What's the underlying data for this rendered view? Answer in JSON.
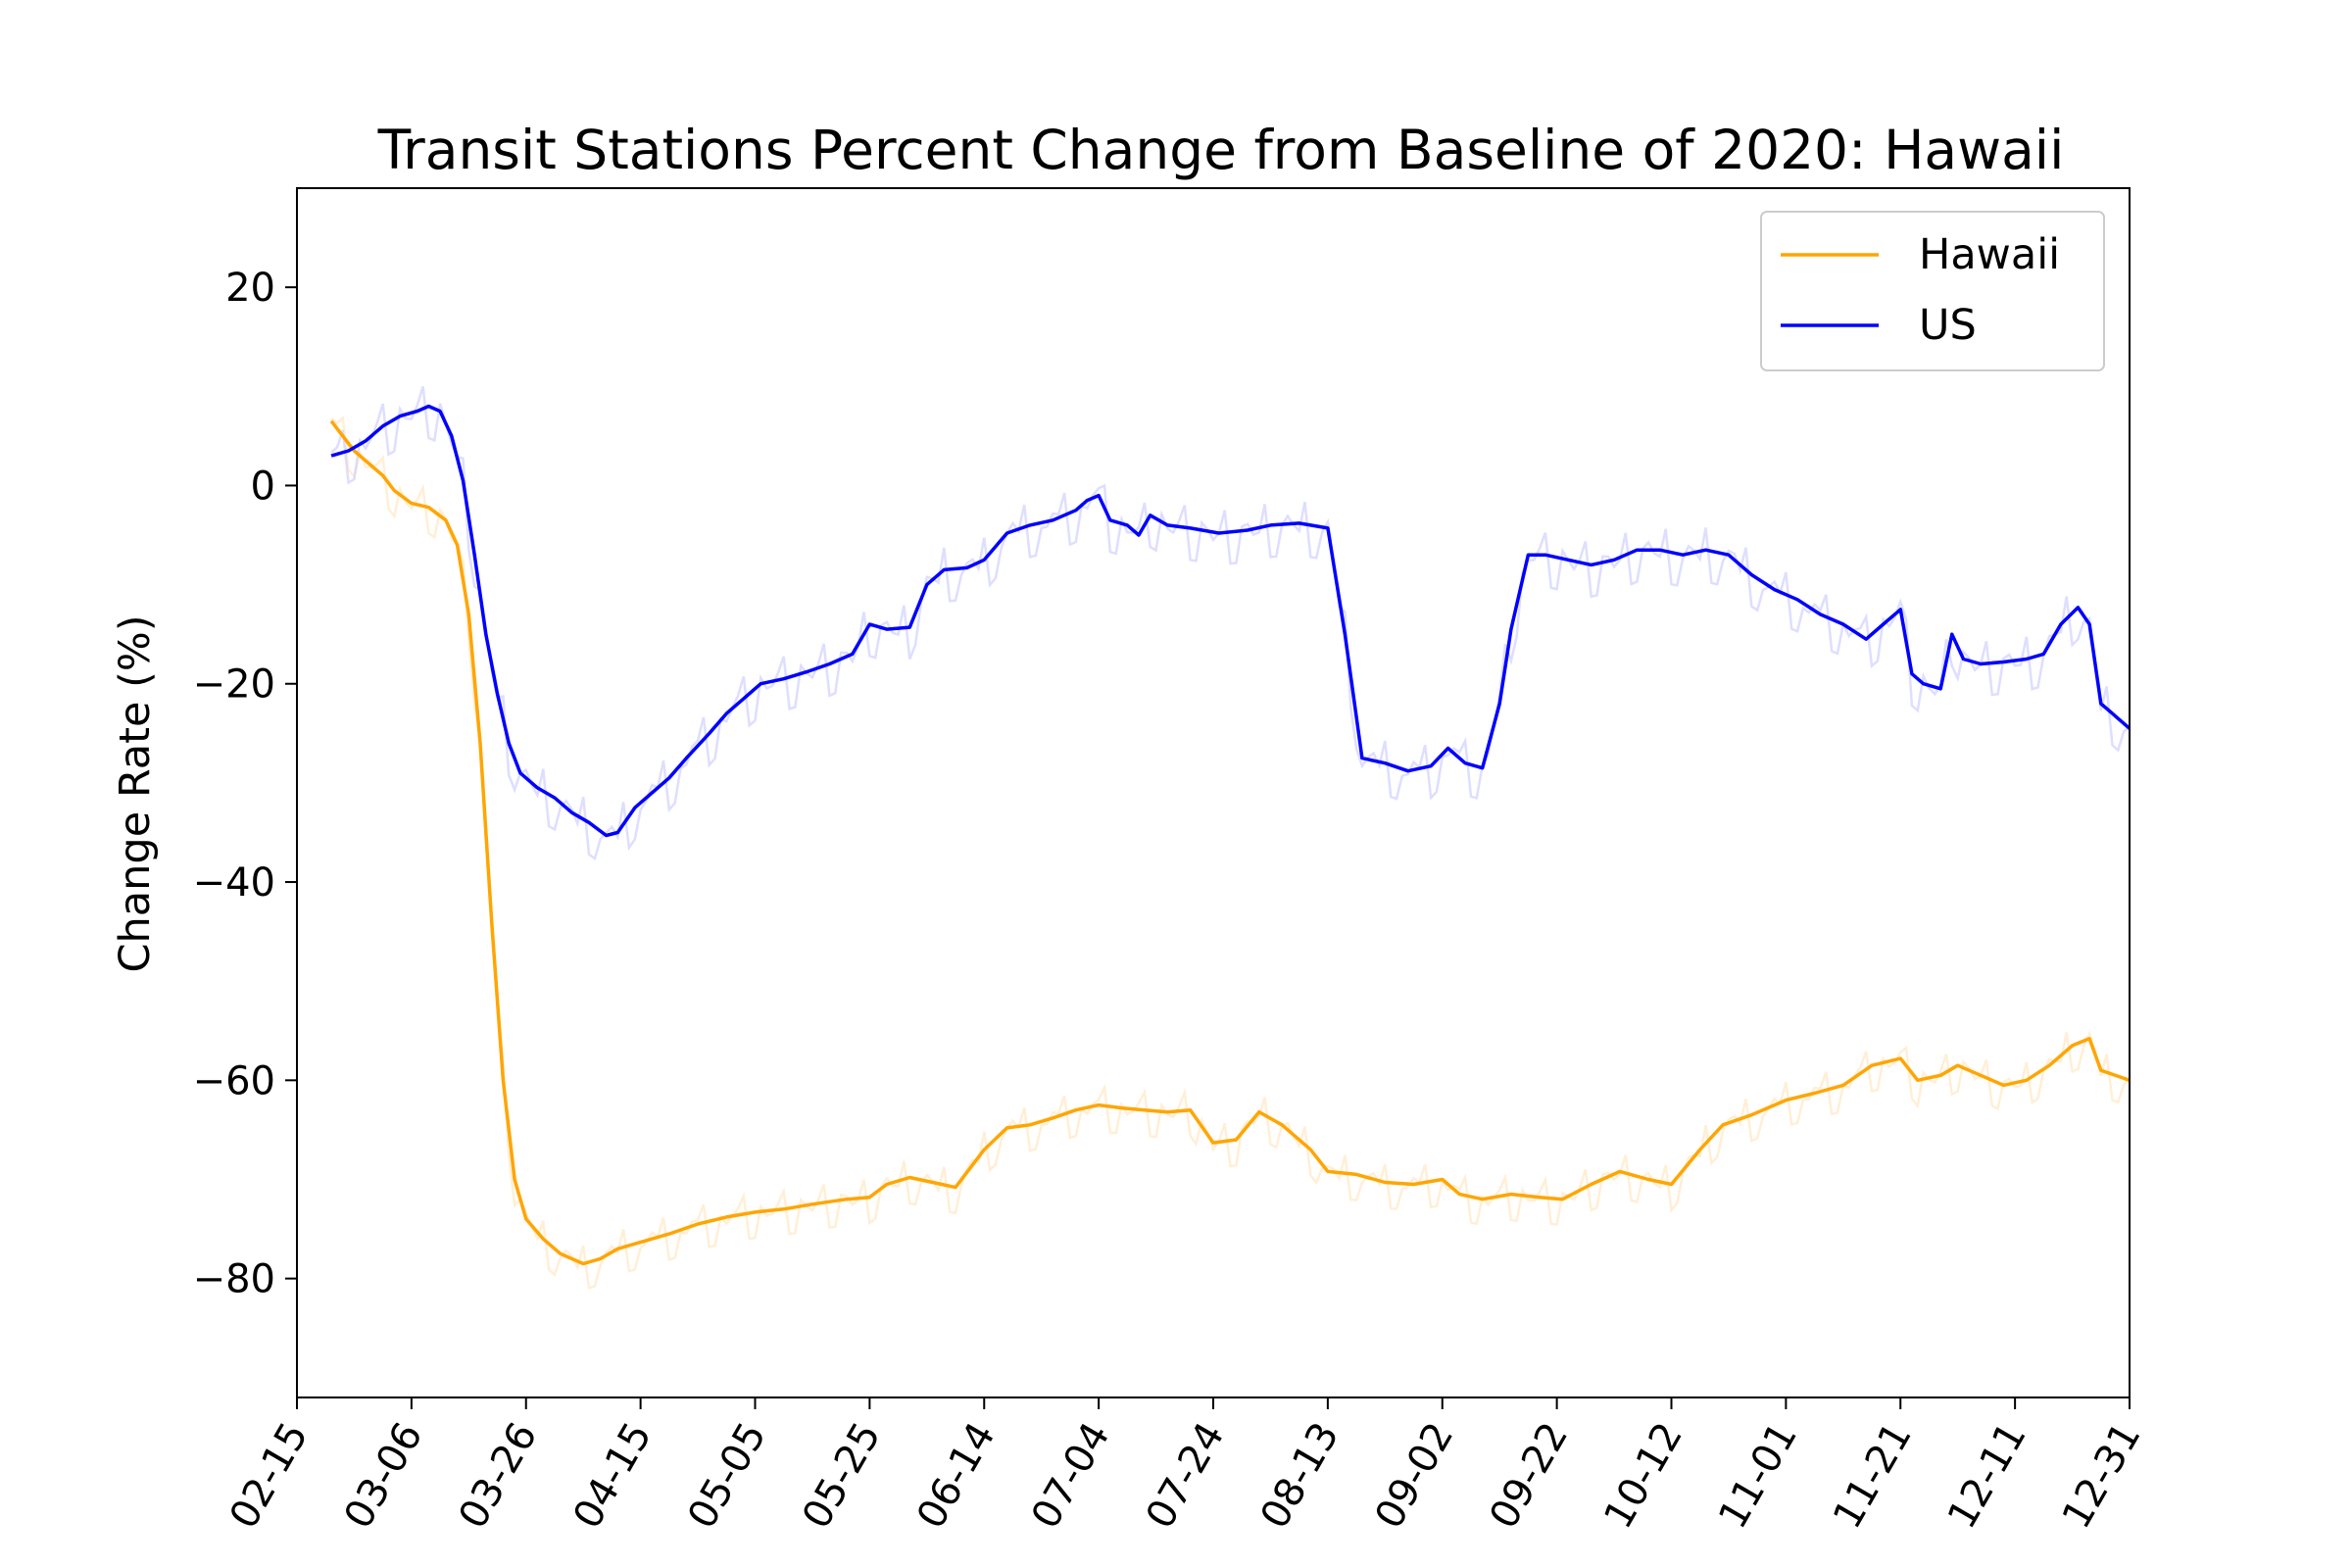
{
  "chart_data": {
    "type": "line",
    "title": "Transit Stations Percent Change from Baseline of 2020: Hawaii",
    "xlabel": "",
    "ylabel": "Change Rate (%)",
    "ylim": [
      -92,
      30
    ],
    "yticks": [
      20,
      0,
      -20,
      -40,
      -60,
      -80
    ],
    "ytick_labels": [
      "20",
      "0",
      "−20",
      "−40",
      "−60",
      "−80"
    ],
    "xlim": [
      "02-15",
      "12-31"
    ],
    "xticks": [
      "02-15",
      "03-06",
      "03-26",
      "04-15",
      "05-05",
      "05-25",
      "06-14",
      "07-04",
      "07-24",
      "08-13",
      "09-02",
      "09-22",
      "10-12",
      "11-01",
      "11-21",
      "12-11",
      "12-31"
    ],
    "grid": false,
    "legend": {
      "position": "top-right",
      "entries": [
        "Hawaii",
        "US"
      ]
    },
    "series": [
      {
        "name": "Hawaii",
        "color": "#FFA500",
        "style": "7-day average",
        "points": [
          [
            "02-21",
            6.5
          ],
          [
            "02-23",
            5.0
          ],
          [
            "02-25",
            3.5
          ],
          [
            "02-28",
            2.0
          ],
          [
            "03-01",
            1.0
          ],
          [
            "03-03",
            -0.5
          ],
          [
            "03-06",
            -1.8
          ],
          [
            "03-09",
            -2.2
          ],
          [
            "03-12",
            -3.5
          ],
          [
            "03-14",
            -6
          ],
          [
            "03-16",
            -13
          ],
          [
            "03-18",
            -26
          ],
          [
            "03-20",
            -44
          ],
          [
            "03-22",
            -60
          ],
          [
            "03-24",
            -70
          ],
          [
            "03-26",
            -74
          ],
          [
            "03-29",
            -76
          ],
          [
            "04-01",
            -77.5
          ],
          [
            "04-05",
            -78.5
          ],
          [
            "04-08",
            -78.0
          ],
          [
            "04-11",
            -77.0
          ],
          [
            "04-14",
            -76.5
          ],
          [
            "04-17",
            -76.0
          ],
          [
            "04-20",
            -75.5
          ],
          [
            "04-25",
            -74.5
          ],
          [
            "04-30",
            -73.8
          ],
          [
            "05-05",
            -73.3
          ],
          [
            "05-10",
            -73.0
          ],
          [
            "05-15",
            -72.5
          ],
          [
            "05-21",
            -72.0
          ],
          [
            "05-25",
            -71.8
          ],
          [
            "05-28",
            -70.5
          ],
          [
            "06-01",
            -69.8
          ],
          [
            "06-05",
            -70.3
          ],
          [
            "06-09",
            -70.8
          ],
          [
            "06-14",
            -67.0
          ],
          [
            "06-18",
            -64.8
          ],
          [
            "06-22",
            -64.5
          ],
          [
            "06-26",
            -63.8
          ],
          [
            "06-30",
            -63.0
          ],
          [
            "07-04",
            -62.5
          ],
          [
            "07-08",
            -62.8
          ],
          [
            "07-12",
            -63.0
          ],
          [
            "07-16",
            -63.2
          ],
          [
            "07-20",
            -63.0
          ],
          [
            "07-24",
            -66.3
          ],
          [
            "07-28",
            -66.0
          ],
          [
            "08-01",
            -63.2
          ],
          [
            "08-05",
            -64.5
          ],
          [
            "08-10",
            -67.0
          ],
          [
            "08-13",
            -69.2
          ],
          [
            "08-18",
            -69.5
          ],
          [
            "08-23",
            -70.3
          ],
          [
            "08-28",
            -70.5
          ],
          [
            "09-02",
            -70.0
          ],
          [
            "09-05",
            -71.5
          ],
          [
            "09-09",
            -72.0
          ],
          [
            "09-14",
            -71.5
          ],
          [
            "09-19",
            -71.8
          ],
          [
            "09-23",
            -72.0
          ],
          [
            "09-28",
            -70.5
          ],
          [
            "10-03",
            -69.2
          ],
          [
            "10-08",
            -70.0
          ],
          [
            "10-12",
            -70.5
          ],
          [
            "10-17",
            -67.0
          ],
          [
            "10-21",
            -64.5
          ],
          [
            "10-26",
            -63.5
          ],
          [
            "11-01",
            -62.0
          ],
          [
            "11-06",
            -61.3
          ],
          [
            "11-11",
            -60.5
          ],
          [
            "11-16",
            -58.5
          ],
          [
            "11-21",
            -57.8
          ],
          [
            "11-24",
            -60.0
          ],
          [
            "11-28",
            -59.5
          ],
          [
            "12-01",
            -58.5
          ],
          [
            "12-05",
            -59.5
          ],
          [
            "12-09",
            -60.5
          ],
          [
            "12-13",
            -60.0
          ],
          [
            "12-17",
            -58.5
          ],
          [
            "12-21",
            -56.5
          ],
          [
            "12-24",
            -55.8
          ],
          [
            "12-26",
            -59.0
          ],
          [
            "12-31",
            -60.0
          ]
        ]
      },
      {
        "name": "US",
        "color": "#0000FF",
        "style": "7-day average",
        "points": [
          [
            "02-21",
            3.0
          ],
          [
            "02-24",
            3.5
          ],
          [
            "02-27",
            4.5
          ],
          [
            "03-01",
            6.0
          ],
          [
            "03-04",
            7.0
          ],
          [
            "03-07",
            7.5
          ],
          [
            "03-09",
            8.0
          ],
          [
            "03-11",
            7.5
          ],
          [
            "03-13",
            5.0
          ],
          [
            "03-15",
            0.5
          ],
          [
            "03-17",
            -7
          ],
          [
            "03-19",
            -15
          ],
          [
            "03-21",
            -21
          ],
          [
            "03-23",
            -26
          ],
          [
            "03-25",
            -29
          ],
          [
            "03-28",
            -30.5
          ],
          [
            "03-31",
            -31.5
          ],
          [
            "04-03",
            -33
          ],
          [
            "04-06",
            -34
          ],
          [
            "04-09",
            -35.3
          ],
          [
            "04-11",
            -35.0
          ],
          [
            "04-14",
            -32.5
          ],
          [
            "04-17",
            -31.0
          ],
          [
            "04-20",
            -29.5
          ],
          [
            "04-23",
            -27.5
          ],
          [
            "04-27",
            -25.0
          ],
          [
            "04-30",
            -23.0
          ],
          [
            "05-03",
            -21.5
          ],
          [
            "05-06",
            -20.0
          ],
          [
            "05-10",
            -19.5
          ],
          [
            "05-14",
            -18.8
          ],
          [
            "05-18",
            -18.0
          ],
          [
            "05-22",
            -17.0
          ],
          [
            "05-25",
            -14.0
          ],
          [
            "05-28",
            -14.5
          ],
          [
            "06-01",
            -14.3
          ],
          [
            "06-04",
            -10.0
          ],
          [
            "06-07",
            -8.5
          ],
          [
            "06-11",
            -8.3
          ],
          [
            "06-14",
            -7.5
          ],
          [
            "06-18",
            -4.8
          ],
          [
            "06-22",
            -4.0
          ],
          [
            "06-26",
            -3.5
          ],
          [
            "06-30",
            -2.5
          ],
          [
            "07-02",
            -1.5
          ],
          [
            "07-04",
            -1.0
          ],
          [
            "07-06",
            -3.5
          ],
          [
            "07-09",
            -4.0
          ],
          [
            "07-11",
            -5.0
          ],
          [
            "07-13",
            -3.0
          ],
          [
            "07-16",
            -4.0
          ],
          [
            "07-20",
            -4.3
          ],
          [
            "07-25",
            -4.8
          ],
          [
            "07-30",
            -4.5
          ],
          [
            "08-03",
            -4.0
          ],
          [
            "08-08",
            -3.8
          ],
          [
            "08-13",
            -4.3
          ],
          [
            "08-16",
            -15.0
          ],
          [
            "08-19",
            -27.5
          ],
          [
            "08-23",
            -28.0
          ],
          [
            "08-27",
            -28.8
          ],
          [
            "08-31",
            -28.3
          ],
          [
            "09-03",
            -26.5
          ],
          [
            "09-06",
            -28.0
          ],
          [
            "09-09",
            -28.5
          ],
          [
            "09-12",
            -22.0
          ],
          [
            "09-14",
            -14.5
          ],
          [
            "09-17",
            -7.0
          ],
          [
            "09-20",
            -7.0
          ],
          [
            "09-24",
            -7.5
          ],
          [
            "09-28",
            -8.0
          ],
          [
            "10-02",
            -7.5
          ],
          [
            "10-06",
            -6.5
          ],
          [
            "10-10",
            -6.5
          ],
          [
            "10-14",
            -7.0
          ],
          [
            "10-18",
            -6.5
          ],
          [
            "10-22",
            -7.0
          ],
          [
            "10-26",
            -9.0
          ],
          [
            "10-30",
            -10.5
          ],
          [
            "11-03",
            -11.5
          ],
          [
            "11-07",
            -13.0
          ],
          [
            "11-11",
            -14.0
          ],
          [
            "11-15",
            -15.5
          ],
          [
            "11-18",
            -14.0
          ],
          [
            "11-21",
            -12.5
          ],
          [
            "11-23",
            -19.0
          ],
          [
            "11-25",
            -20.0
          ],
          [
            "11-28",
            -20.5
          ],
          [
            "11-30",
            -15.0
          ],
          [
            "12-02",
            -17.5
          ],
          [
            "12-05",
            -18.0
          ],
          [
            "12-09",
            -17.8
          ],
          [
            "12-13",
            -17.5
          ],
          [
            "12-16",
            -17.0
          ],
          [
            "12-19",
            -14.0
          ],
          [
            "12-22",
            -12.3
          ],
          [
            "12-24",
            -14.0
          ],
          [
            "12-26",
            -22.0
          ],
          [
            "12-28",
            -23.0
          ],
          [
            "12-31",
            -24.5
          ]
        ]
      }
    ]
  }
}
